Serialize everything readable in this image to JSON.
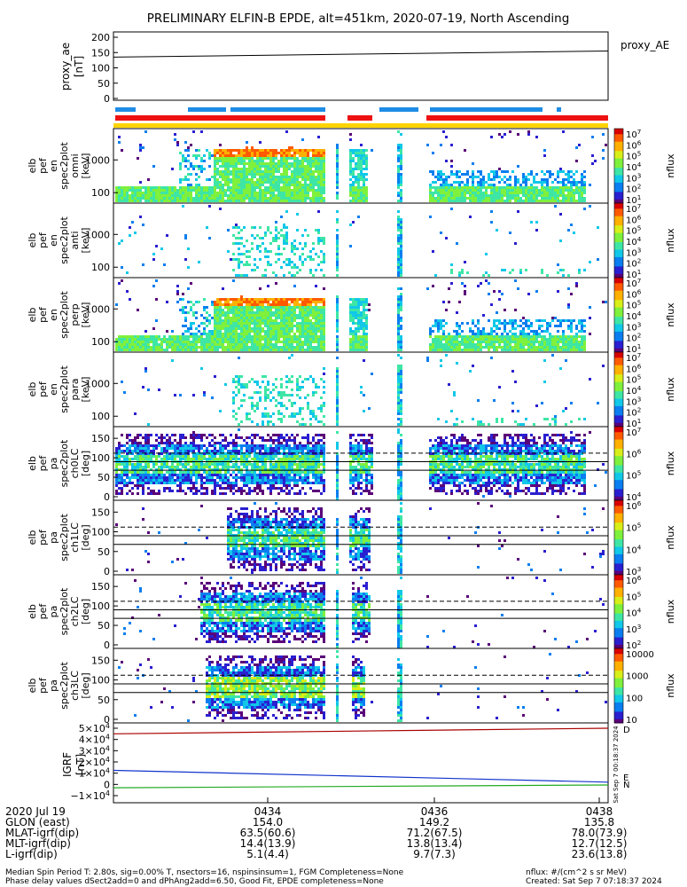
{
  "title": "PRELIMINARY ELFIN-B EPDE, alt=451km, 2020-07-19, North Ascending",
  "colors": {
    "bar_blue": "#1e8ce6",
    "bar_red": "#ee1111",
    "bar_yellow": "#ffd400",
    "ae_line": "#000000",
    "igrf_red": "#aa0000",
    "igrf_blue": "#1133cc",
    "igrf_green": "#22aa22"
  },
  "colormap": [
    "#ffffff",
    "#5a0078",
    "#2a1fd0",
    "#0a7ef0",
    "#11c8e8",
    "#3ee6a6",
    "#7ff03c",
    "#d8ee18",
    "#ffb000",
    "#ff5a00",
    "#d80000"
  ],
  "chart_data": [
    {
      "type": "line",
      "name": "proxy_ae",
      "ylabel": "proxy_ae\n[nT]",
      "ylim": [
        0,
        200
      ],
      "yticks": [
        "200",
        "150",
        "100",
        "50",
        "0"
      ],
      "legend": "proxy_AE",
      "x": [
        0,
        1
      ],
      "values": [
        135,
        155
      ]
    },
    {
      "type": "heatmap",
      "name": "pef-en-omni",
      "ylabel": [
        "elb",
        "pef",
        "en",
        "spec2plot",
        "omni",
        "[keV]"
      ],
      "yscale": "log",
      "yticks": [
        "1000",
        "100"
      ],
      "colorbar": {
        "label": "nflux",
        "ticks": [
          "10^7",
          "10^6",
          "10^5",
          "10^4",
          "10^3",
          "10^2",
          "10^1"
        ]
      }
    },
    {
      "type": "heatmap",
      "name": "pef-en-anti",
      "ylabel": [
        "elb",
        "pef",
        "en",
        "spec2plot",
        "anti",
        "[keV]"
      ],
      "yscale": "log",
      "yticks": [
        "1000",
        "100"
      ],
      "colorbar": {
        "label": "nflux",
        "ticks": [
          "10^7",
          "10^6",
          "10^5",
          "10^4",
          "10^3",
          "10^2",
          "10^1"
        ]
      }
    },
    {
      "type": "heatmap",
      "name": "pef-en-perp",
      "ylabel": [
        "elb",
        "pef",
        "en",
        "spec2plot",
        "perp",
        "[keV]"
      ],
      "yscale": "log",
      "yticks": [
        "1000",
        "100"
      ],
      "colorbar": {
        "label": "nflux",
        "ticks": [
          "10^7",
          "10^6",
          "10^5",
          "10^4",
          "10^3",
          "10^2",
          "10^1"
        ]
      }
    },
    {
      "type": "heatmap",
      "name": "pef-en-para",
      "ylabel": [
        "elb",
        "pef",
        "en",
        "spec2plot",
        "para",
        "[keV]"
      ],
      "yscale": "log",
      "yticks": [
        "1000",
        "100"
      ],
      "colorbar": {
        "label": "nflux",
        "ticks": [
          "10^7",
          "10^6",
          "10^5",
          "10^4",
          "10^3",
          "10^2",
          "10^1"
        ]
      }
    },
    {
      "type": "heatmap",
      "name": "pa-ch0LC",
      "ylabel": [
        "elb",
        "pef",
        "pa",
        "spec2plot",
        "ch0LC",
        "[deg]"
      ],
      "ylim": [
        0,
        180
      ],
      "yticks": [
        "150",
        "100",
        "50",
        "0"
      ],
      "colorbar": {
        "label": "nflux",
        "ticks": [
          "10^7",
          "10^6",
          "10^5",
          "10^4"
        ]
      }
    },
    {
      "type": "heatmap",
      "name": "pa-ch1LC",
      "ylabel": [
        "elb",
        "pef",
        "pa",
        "spec2plot",
        "ch1LC",
        "[deg]"
      ],
      "ylim": [
        0,
        180
      ],
      "yticks": [
        "150",
        "100",
        "50",
        "0"
      ],
      "colorbar": {
        "label": "nflux",
        "ticks": [
          "10^6",
          "10^5",
          "10^4",
          "10^3"
        ]
      }
    },
    {
      "type": "heatmap",
      "name": "pa-ch2LC",
      "ylabel": [
        "elb",
        "pef",
        "pa",
        "spec2plot",
        "ch2LC",
        "[deg]"
      ],
      "ylim": [
        0,
        180
      ],
      "yticks": [
        "150",
        "100",
        "50",
        "0"
      ],
      "colorbar": {
        "label": "nflux",
        "ticks": [
          "10^6",
          "10^5",
          "10^4",
          "10^3",
          "10^2"
        ]
      }
    },
    {
      "type": "heatmap",
      "name": "pa-ch3LC",
      "ylabel": [
        "elb",
        "pef",
        "pa",
        "spec2plot",
        "ch3LC",
        "[deg]"
      ],
      "ylim": [
        0,
        180
      ],
      "yticks": [
        "150",
        "100",
        "50",
        "0"
      ],
      "colorbar": {
        "label": "nflux",
        "ticks": [
          "10000",
          "1000",
          "100",
          "10"
        ]
      }
    },
    {
      "type": "line",
      "name": "igrf",
      "ylabel": "IGRF\n[nT]",
      "yticks": [
        "5×10^4",
        "4×10^4",
        "3×10^4",
        "2×10^4",
        "1×10^4",
        "0",
        "−1×10^4"
      ],
      "ylim": [
        -10000,
        50000
      ],
      "series": [
        {
          "name": "red",
          "values": [
            45000,
            50000
          ]
        },
        {
          "name": "blue",
          "values": [
            12500,
            2000
          ]
        },
        {
          "name": "green",
          "values": [
            -3000,
            -500
          ]
        }
      ],
      "side_labels": [
        "Sat Sep  7 00:18:37 2024",
        "N",
        "E",
        "D"
      ]
    }
  ],
  "xaxis": {
    "rows": [
      {
        "label": "2020 Jul 19",
        "values": [
          "0434",
          "0436",
          "0438"
        ]
      },
      {
        "label": "GLON (east)",
        "values": [
          "154.0",
          "149.2",
          "135.8"
        ]
      },
      {
        "label": "MLAT-igrf(dip)",
        "values": [
          "63.5(60.6)",
          "71.2(67.5)",
          "78.0(73.9)"
        ]
      },
      {
        "label": "MLT-igrf(dip)",
        "values": [
          "14.4(13.9)",
          "13.8(13.4)",
          "12.7(12.5)"
        ]
      },
      {
        "label": "L-igrf(dip)",
        "values": [
          "5.1(4.4)",
          "9.7(7.3)",
          "23.6(13.8)"
        ]
      }
    ]
  },
  "footer": {
    "line1": "Median Spin Period T: 2.80s, sig=0.00% T, nsectors=16, nspinsinsum=1, FGM Completeness=None",
    "line2": "Phase delay values dSect2add=0 and dPhAng2add=6.50, Good Fit, EPDE completeness=None",
    "units": "nflux: #/(cm^2 s sr MeV)",
    "created": "Created: Sat Sep  7 07:18:37 2024"
  }
}
